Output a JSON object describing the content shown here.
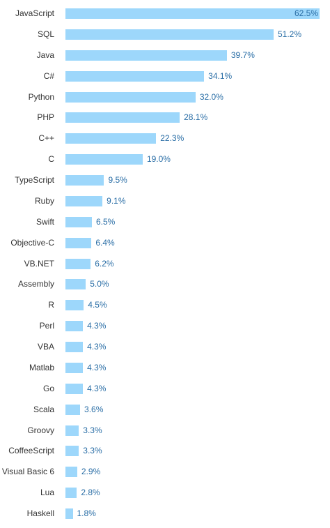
{
  "chart_data": {
    "type": "bar",
    "orientation": "horizontal",
    "title": "",
    "xlabel": "",
    "ylabel": "",
    "xlim": [
      0,
      62.5
    ],
    "grid": false,
    "legend": "none",
    "bar_color": "#9dd7fb",
    "label_color": "#2a6ea6",
    "categories": [
      "JavaScript",
      "SQL",
      "Java",
      "C#",
      "Python",
      "PHP",
      "C++",
      "C",
      "TypeScript",
      "Ruby",
      "Swift",
      "Objective-C",
      "VB.NET",
      "Assembly",
      "R",
      "Perl",
      "VBA",
      "Matlab",
      "Go",
      "Scala",
      "Groovy",
      "CoffeeScript",
      "Visual Basic 6",
      "Lua",
      "Haskell"
    ],
    "values": [
      62.5,
      51.2,
      39.7,
      34.1,
      32.0,
      28.1,
      22.3,
      19.0,
      9.5,
      9.1,
      6.5,
      6.4,
      6.2,
      5.0,
      4.5,
      4.3,
      4.3,
      4.3,
      4.3,
      3.6,
      3.3,
      3.3,
      2.9,
      2.8,
      1.8
    ],
    "value_labels": [
      "62.5%",
      "51.2%",
      "39.7%",
      "34.1%",
      "32.0%",
      "28.1%",
      "22.3%",
      "19.0%",
      "9.5%",
      "9.1%",
      "6.5%",
      "6.4%",
      "6.2%",
      "5.0%",
      "4.5%",
      "4.3%",
      "4.3%",
      "4.3%",
      "4.3%",
      "3.6%",
      "3.3%",
      "3.3%",
      "2.9%",
      "2.8%",
      "1.8%"
    ]
  }
}
